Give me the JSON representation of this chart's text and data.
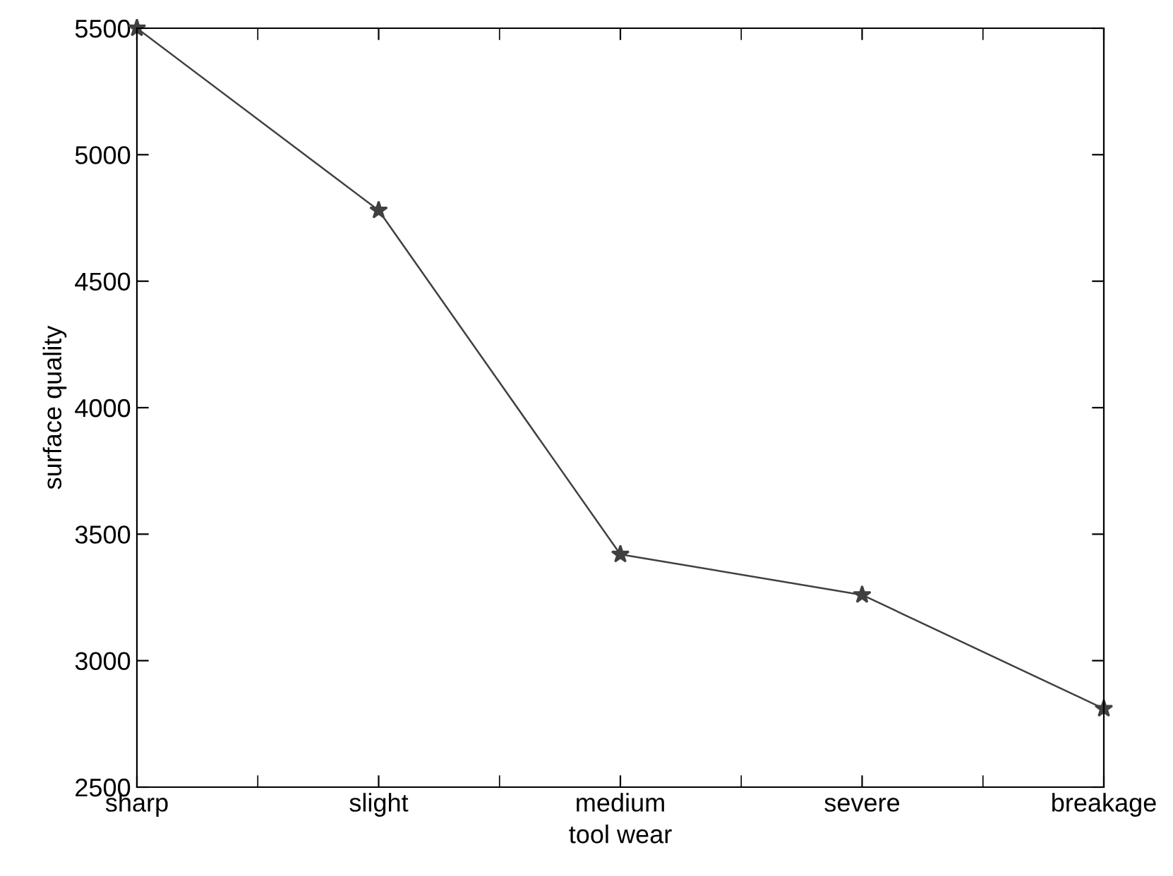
{
  "chart_data": {
    "type": "line",
    "xlabel": "tool wear",
    "ylabel": "surface quality",
    "categories": [
      "sharp",
      "slight",
      "medium",
      "severe",
      "breakage"
    ],
    "series": [
      {
        "color": "#404040",
        "values": [
          5500,
          4780,
          3420,
          3260,
          2810
        ]
      }
    ],
    "ylim": [
      2500,
      5500
    ],
    "yticks": [
      2500,
      3000,
      3500,
      4000,
      4500,
      5000,
      5500
    ],
    "marker": "star",
    "line_style": "solid",
    "grid": false
  }
}
